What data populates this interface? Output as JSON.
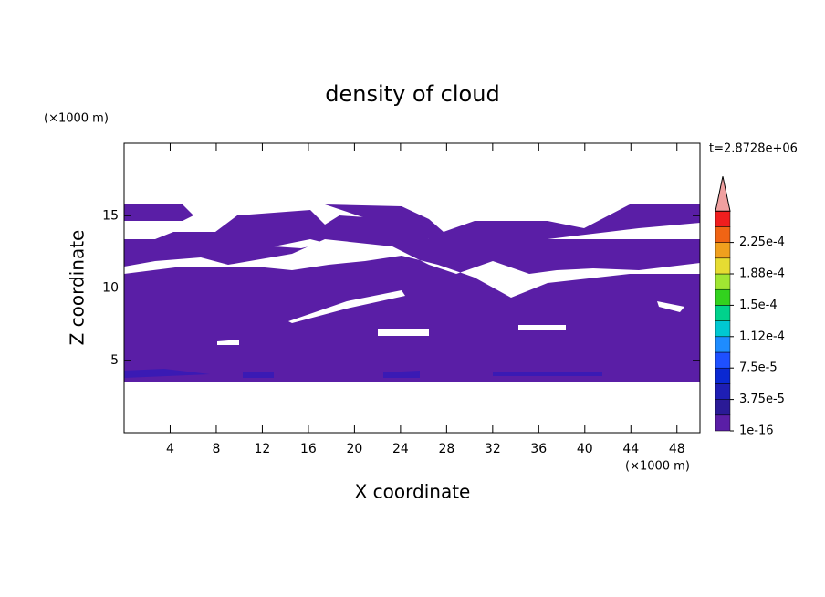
{
  "chart_data": {
    "type": "contour",
    "title": "density of cloud",
    "x_label": "X coordinate",
    "y_label": "Z coordinate",
    "x_unit": "(×1000 m)",
    "y_unit": "(×1000 m)",
    "time_label": "t=2.8728e+06",
    "xlim": [
      0,
      50
    ],
    "ylim": [
      0,
      20
    ],
    "xticks": [
      4,
      8,
      12,
      16,
      20,
      24,
      28,
      32,
      36,
      40,
      44,
      48
    ],
    "yticks": [
      5,
      10,
      15
    ],
    "colorbar_ticks": [
      {
        "value": 1e-16,
        "label": "1e-16"
      },
      {
        "value": 3.75e-05,
        "label": "3.75e-5"
      },
      {
        "value": 7.5e-05,
        "label": "7.5e-5"
      },
      {
        "value": 0.000112,
        "label": "1.12e-4"
      },
      {
        "value": 0.00015,
        "label": "1.5e-4"
      },
      {
        "value": 0.000188,
        "label": "1.88e-4"
      },
      {
        "value": 0.000225,
        "label": "2.25e-4"
      }
    ],
    "colorbar_colors": [
      "#5a1ea6",
      "#2a1a96",
      "#1e1eb4",
      "#0a28d2",
      "#1e50ff",
      "#1e8cff",
      "#00c8d2",
      "#00d28c",
      "#32d21e",
      "#a0e632",
      "#e6dc32",
      "#f0a01e",
      "#f06414",
      "#f01e1e"
    ],
    "overflow_color": "#f0a0a0",
    "fill_color": "#5a1ea6"
  }
}
